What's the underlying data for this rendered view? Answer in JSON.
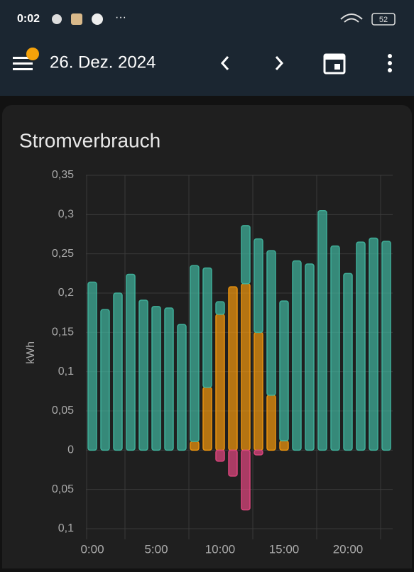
{
  "status_bar": {
    "time": "0:02",
    "battery": "52"
  },
  "header": {
    "date": "26. Dez. 2024"
  },
  "chart_data": {
    "type": "bar",
    "stacked": true,
    "title": "Stromverbrauch",
    "ylabel": "kWh",
    "categories": [
      "0:00",
      null,
      null,
      null,
      null,
      "5:00",
      null,
      null,
      null,
      null,
      "10:00",
      null,
      null,
      null,
      null,
      "15:00",
      null,
      null,
      null,
      null,
      "20:00",
      null,
      null,
      null
    ],
    "series": [
      {
        "color": "#e8920f",
        "values": [
          0,
          0,
          0,
          0,
          0,
          0,
          0,
          0,
          0.011,
          0.08,
          0.173,
          0.208,
          0.212,
          0.15,
          0.07,
          0.012,
          0,
          0,
          0,
          0,
          0,
          0,
          0,
          0
        ]
      },
      {
        "color": "#3fae98",
        "values": [
          0.214,
          0.179,
          0.2,
          0.224,
          0.191,
          0.183,
          0.181,
          0.16,
          0.224,
          0.152,
          0.016,
          0,
          0.074,
          0.119,
          0.184,
          0.178,
          0.241,
          0.237,
          0.305,
          0.26,
          0.225,
          0.265,
          0.27,
          0.266
        ]
      },
      {
        "color": "#d9457c",
        "values": [
          0,
          0,
          0,
          0,
          0,
          0,
          0,
          0,
          0,
          0,
          -0.014,
          -0.033,
          -0.076,
          -0.006,
          0,
          0,
          0,
          0,
          0,
          0,
          0,
          0,
          0,
          0
        ]
      }
    ],
    "ylim": [
      -0.1,
      0.35
    ],
    "yticks": [
      {
        "value": -0.1,
        "label": "0,1"
      },
      {
        "value": -0.05,
        "label": "0,05"
      },
      0,
      {
        "value": 0.05,
        "label": "0,05"
      },
      {
        "value": 0.1,
        "label": "0,1"
      },
      {
        "value": 0.15,
        "label": "0,15"
      },
      {
        "value": 0.2,
        "label": "0,2"
      },
      {
        "value": 0.25,
        "label": "0,25"
      },
      {
        "value": 0.3,
        "label": "0,3"
      },
      {
        "value": 0.35,
        "label": "0,35"
      }
    ],
    "grid": true
  }
}
